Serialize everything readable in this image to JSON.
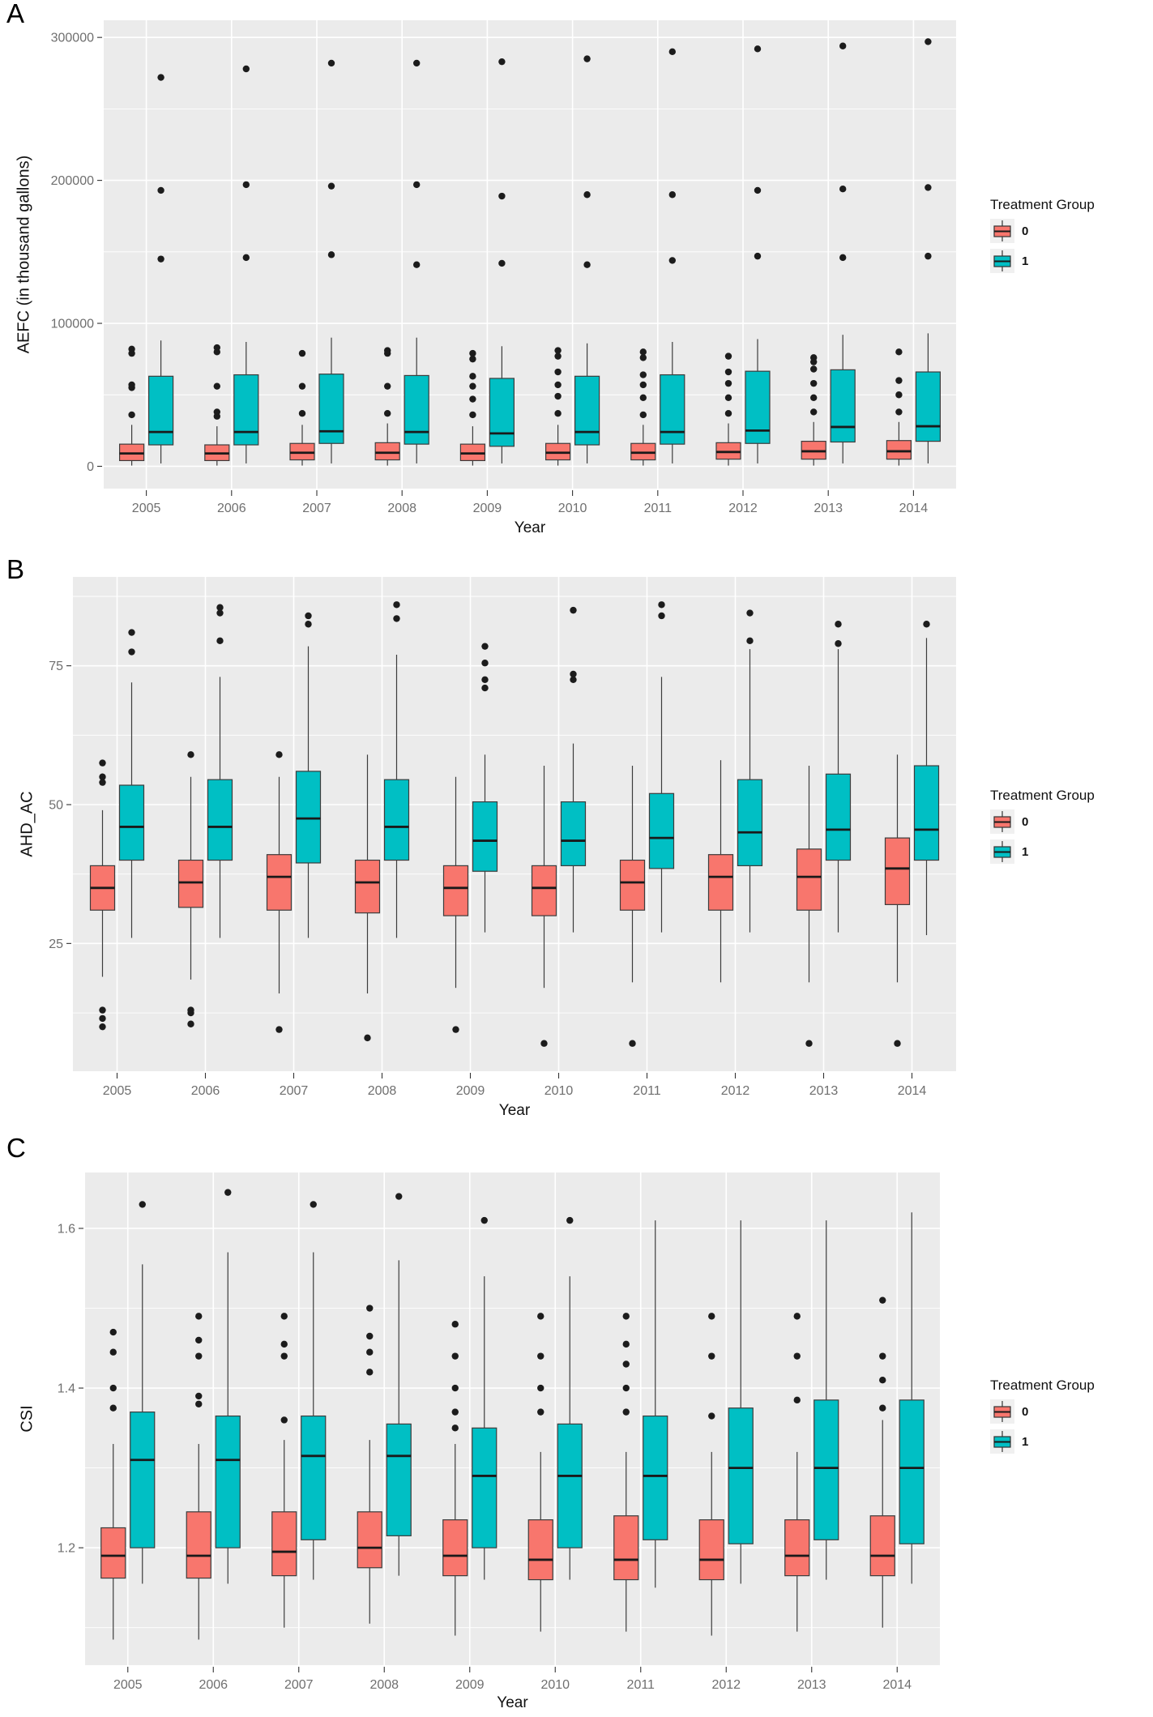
{
  "legend": {
    "title": "Treatment Group",
    "items": [
      {
        "label": "0",
        "color": "#F8766D"
      },
      {
        "label": "1",
        "color": "#00BFC4"
      }
    ]
  },
  "colors": {
    "group0": "#F8766D",
    "group1": "#00BFC4",
    "panel_background": "#EBEBEB",
    "grid": "#FFFFFF",
    "tick_text": "#6F6F6F",
    "axis_text": "#111111",
    "box_border": "#3C3C3C",
    "outlier": "#1C1C1C",
    "legend_key_bg": "#F0F0F0"
  },
  "chart_data": [
    {
      "type": "boxplot",
      "panel_label": "A",
      "xlabel": "Year",
      "ylabel": "AEFC (in thousand gallons)",
      "categories": [
        "2005",
        "2006",
        "2007",
        "2008",
        "2009",
        "2010",
        "2011",
        "2012",
        "2013",
        "2014"
      ],
      "ylim": [
        -15600,
        312000
      ],
      "yticks": [
        0,
        100000,
        200000,
        300000
      ],
      "ytick_labels": [
        "0",
        "100000",
        "200000",
        "300000"
      ],
      "minor_yticks": [
        50000,
        150000,
        250000
      ],
      "grid": true,
      "legend_position": "right",
      "series": [
        {
          "name": "0",
          "color": "#F8766D",
          "boxes": [
            {
              "low": 500,
              "q1": 4000,
              "med": 9000,
              "q3": 15500,
              "high": 29000,
              "out": [
                36000,
                55000,
                57000,
                79000,
                82000
              ]
            },
            {
              "low": 500,
              "q1": 4000,
              "med": 9000,
              "q3": 15000,
              "high": 28000,
              "out": [
                35000,
                38000,
                56000,
                80000,
                83000
              ]
            },
            {
              "low": 500,
              "q1": 4500,
              "med": 9500,
              "q3": 16000,
              "high": 29000,
              "out": [
                37000,
                56000,
                79000
              ]
            },
            {
              "low": 500,
              "q1": 4500,
              "med": 9500,
              "q3": 16500,
              "high": 30000,
              "out": [
                37000,
                56000,
                79000,
                81000
              ]
            },
            {
              "low": 500,
              "q1": 4000,
              "med": 9000,
              "q3": 15500,
              "high": 28000,
              "out": [
                36000,
                47000,
                56000,
                63000,
                75000,
                79000
              ]
            },
            {
              "low": 500,
              "q1": 4500,
              "med": 9500,
              "q3": 16000,
              "high": 29000,
              "out": [
                37000,
                49000,
                57000,
                66000,
                77000,
                81000
              ]
            },
            {
              "low": 500,
              "q1": 4500,
              "med": 9500,
              "q3": 16000,
              "high": 29000,
              "out": [
                36000,
                48000,
                57000,
                64000,
                76000,
                80000
              ]
            },
            {
              "low": 500,
              "q1": 5000,
              "med": 10000,
              "q3": 16500,
              "high": 30000,
              "out": [
                37000,
                48000,
                58000,
                66000,
                77000
              ]
            },
            {
              "low": 500,
              "q1": 5000,
              "med": 10500,
              "q3": 17500,
              "high": 31000,
              "out": [
                38000,
                48000,
                58000,
                68000,
                73000,
                76000
              ]
            },
            {
              "low": 500,
              "q1": 5000,
              "med": 10500,
              "q3": 18000,
              "high": 31000,
              "out": [
                38000,
                50000,
                60000,
                80000
              ]
            }
          ]
        },
        {
          "name": "1",
          "color": "#00BFC4",
          "boxes": [
            {
              "low": 2000,
              "q1": 15000,
              "med": 24000,
              "q3": 63000,
              "high": 88000,
              "out": [
                145000,
                193000,
                272000
              ]
            },
            {
              "low": 2000,
              "q1": 15000,
              "med": 24000,
              "q3": 64000,
              "high": 87000,
              "out": [
                146000,
                197000,
                278000
              ]
            },
            {
              "low": 2000,
              "q1": 16000,
              "med": 24500,
              "q3": 64500,
              "high": 90000,
              "out": [
                148000,
                196000,
                282000
              ]
            },
            {
              "low": 2000,
              "q1": 15500,
              "med": 24000,
              "q3": 63500,
              "high": 90000,
              "out": [
                141000,
                197000,
                282000
              ]
            },
            {
              "low": 2000,
              "q1": 14000,
              "med": 23000,
              "q3": 61500,
              "high": 84000,
              "out": [
                142000,
                189000,
                283000
              ]
            },
            {
              "low": 2000,
              "q1": 15000,
              "med": 24000,
              "q3": 63000,
              "high": 86000,
              "out": [
                141000,
                190000,
                285000
              ]
            },
            {
              "low": 2000,
              "q1": 15500,
              "med": 24000,
              "q3": 64000,
              "high": 87000,
              "out": [
                144000,
                190000,
                290000
              ]
            },
            {
              "low": 2000,
              "q1": 16000,
              "med": 25000,
              "q3": 66500,
              "high": 89000,
              "out": [
                147000,
                193000,
                292000
              ]
            },
            {
              "low": 2000,
              "q1": 17000,
              "med": 27500,
              "q3": 67500,
              "high": 92000,
              "out": [
                146000,
                194000,
                294000
              ]
            },
            {
              "low": 2000,
              "q1": 17500,
              "med": 28000,
              "q3": 66000,
              "high": 93000,
              "out": [
                147000,
                195000,
                297000
              ]
            }
          ]
        }
      ]
    },
    {
      "type": "boxplot",
      "panel_label": "B",
      "xlabel": "Year",
      "ylabel": "AHD_AC",
      "categories": [
        "2005",
        "2006",
        "2007",
        "2008",
        "2009",
        "2010",
        "2011",
        "2012",
        "2013",
        "2014"
      ],
      "ylim": [
        2,
        91
      ],
      "yticks": [
        25,
        50,
        75
      ],
      "ytick_labels": [
        "25",
        "50",
        "75"
      ],
      "minor_yticks": [
        12.5,
        37.5,
        62.5,
        87.5
      ],
      "grid": true,
      "legend_position": "right",
      "series": [
        {
          "name": "0",
          "color": "#F8766D",
          "boxes": [
            {
              "low": 19,
              "q1": 31,
              "med": 35,
              "q3": 39,
              "high": 49,
              "out": [
                10,
                11.5,
                13,
                54,
                55,
                57.5
              ]
            },
            {
              "low": 18.5,
              "q1": 31.5,
              "med": 36,
              "q3": 40,
              "high": 55,
              "out": [
                10.5,
                12.5,
                13,
                59
              ]
            },
            {
              "low": 16,
              "q1": 31,
              "med": 37,
              "q3": 41,
              "high": 55,
              "out": [
                9.5,
                59
              ]
            },
            {
              "low": 16,
              "q1": 30.5,
              "med": 36,
              "q3": 40,
              "high": 59,
              "out": [
                8
              ]
            },
            {
              "low": 17,
              "q1": 30,
              "med": 35,
              "q3": 39,
              "high": 55,
              "out": [
                9.5
              ]
            },
            {
              "low": 17,
              "q1": 30,
              "med": 35,
              "q3": 39,
              "high": 57,
              "out": [
                7
              ]
            },
            {
              "low": 18,
              "q1": 31,
              "med": 36,
              "q3": 40,
              "high": 57,
              "out": [
                7
              ]
            },
            {
              "low": 18,
              "q1": 31,
              "med": 37,
              "q3": 41,
              "high": 58,
              "out": []
            },
            {
              "low": 18,
              "q1": 31,
              "med": 37,
              "q3": 42,
              "high": 57,
              "out": [
                7
              ]
            },
            {
              "low": 18,
              "q1": 32,
              "med": 38.5,
              "q3": 44,
              "high": 59,
              "out": [
                7
              ]
            }
          ]
        },
        {
          "name": "1",
          "color": "#00BFC4",
          "boxes": [
            {
              "low": 26,
              "q1": 40,
              "med": 46,
              "q3": 53.5,
              "high": 72,
              "out": [
                77.5,
                81
              ]
            },
            {
              "low": 26,
              "q1": 40,
              "med": 46,
              "q3": 54.5,
              "high": 73,
              "out": [
                79.5,
                84.5,
                85.5
              ]
            },
            {
              "low": 26,
              "q1": 39.5,
              "med": 47.5,
              "q3": 56,
              "high": 78.5,
              "out": [
                82.5,
                84
              ]
            },
            {
              "low": 26,
              "q1": 40,
              "med": 46,
              "q3": 54.5,
              "high": 77,
              "out": [
                83.5,
                86
              ]
            },
            {
              "low": 27,
              "q1": 38,
              "med": 43.5,
              "q3": 50.5,
              "high": 59,
              "out": [
                71,
                72.5,
                75.5,
                78.5
              ]
            },
            {
              "low": 27,
              "q1": 39,
              "med": 43.5,
              "q3": 50.5,
              "high": 61,
              "out": [
                72.5,
                73.5,
                85
              ]
            },
            {
              "low": 27,
              "q1": 38.5,
              "med": 44,
              "q3": 52,
              "high": 73,
              "out": [
                84,
                86
              ]
            },
            {
              "low": 27,
              "q1": 39,
              "med": 45,
              "q3": 54.5,
              "high": 78,
              "out": [
                79.5,
                84.5
              ]
            },
            {
              "low": 27,
              "q1": 40,
              "med": 45.5,
              "q3": 55.5,
              "high": 78,
              "out": [
                79,
                82.5
              ]
            },
            {
              "low": 26.5,
              "q1": 40,
              "med": 45.5,
              "q3": 57,
              "high": 80,
              "out": [
                82.5
              ]
            }
          ]
        }
      ]
    },
    {
      "type": "boxplot",
      "panel_label": "C",
      "xlabel": "Year",
      "ylabel": "CSI",
      "categories": [
        "2005",
        "2006",
        "2007",
        "2008",
        "2009",
        "2010",
        "2011",
        "2012",
        "2013",
        "2014"
      ],
      "ylim": [
        1.053,
        1.67
      ],
      "yticks": [
        1.2,
        1.4,
        1.6
      ],
      "ytick_labels": [
        "1.2",
        "1.4",
        "1.6"
      ],
      "minor_yticks": [
        1.1,
        1.3,
        1.5
      ],
      "grid": true,
      "legend_position": "right",
      "series": [
        {
          "name": "0",
          "color": "#F8766D",
          "boxes": [
            {
              "low": 1.085,
              "q1": 1.162,
              "med": 1.19,
              "q3": 1.225,
              "high": 1.33,
              "out": [
                1.375,
                1.4,
                1.445,
                1.47
              ]
            },
            {
              "low": 1.085,
              "q1": 1.162,
              "med": 1.19,
              "q3": 1.245,
              "high": 1.33,
              "out": [
                1.38,
                1.39,
                1.44,
                1.46,
                1.49
              ]
            },
            {
              "low": 1.1,
              "q1": 1.165,
              "med": 1.195,
              "q3": 1.245,
              "high": 1.335,
              "out": [
                1.36,
                1.44,
                1.455,
                1.49
              ]
            },
            {
              "low": 1.105,
              "q1": 1.175,
              "med": 1.2,
              "q3": 1.245,
              "high": 1.335,
              "out": [
                1.42,
                1.445,
                1.465,
                1.5
              ]
            },
            {
              "low": 1.09,
              "q1": 1.165,
              "med": 1.19,
              "q3": 1.235,
              "high": 1.33,
              "out": [
                1.35,
                1.37,
                1.4,
                1.44,
                1.48
              ]
            },
            {
              "low": 1.095,
              "q1": 1.16,
              "med": 1.185,
              "q3": 1.235,
              "high": 1.32,
              "out": [
                1.37,
                1.4,
                1.44,
                1.49
              ]
            },
            {
              "low": 1.095,
              "q1": 1.16,
              "med": 1.185,
              "q3": 1.24,
              "high": 1.32,
              "out": [
                1.37,
                1.4,
                1.43,
                1.455,
                1.49
              ]
            },
            {
              "low": 1.09,
              "q1": 1.16,
              "med": 1.185,
              "q3": 1.235,
              "high": 1.32,
              "out": [
                1.365,
                1.44,
                1.49
              ]
            },
            {
              "low": 1.095,
              "q1": 1.165,
              "med": 1.19,
              "q3": 1.235,
              "high": 1.32,
              "out": [
                1.385,
                1.44,
                1.49
              ]
            },
            {
              "low": 1.1,
              "q1": 1.165,
              "med": 1.19,
              "q3": 1.24,
              "high": 1.36,
              "out": [
                1.375,
                1.41,
                1.44,
                1.51
              ]
            }
          ]
        },
        {
          "name": "1",
          "color": "#00BFC4",
          "boxes": [
            {
              "low": 1.155,
              "q1": 1.2,
              "med": 1.31,
              "q3": 1.37,
              "high": 1.555,
              "out": [
                1.63
              ]
            },
            {
              "low": 1.155,
              "q1": 1.2,
              "med": 1.31,
              "q3": 1.365,
              "high": 1.57,
              "out": [
                1.645
              ]
            },
            {
              "low": 1.16,
              "q1": 1.21,
              "med": 1.315,
              "q3": 1.365,
              "high": 1.57,
              "out": [
                1.63
              ]
            },
            {
              "low": 1.165,
              "q1": 1.215,
              "med": 1.315,
              "q3": 1.355,
              "high": 1.56,
              "out": [
                1.64
              ]
            },
            {
              "low": 1.16,
              "q1": 1.2,
              "med": 1.29,
              "q3": 1.35,
              "high": 1.54,
              "out": [
                1.61
              ]
            },
            {
              "low": 1.16,
              "q1": 1.2,
              "med": 1.29,
              "q3": 1.355,
              "high": 1.54,
              "out": [
                1.61
              ]
            },
            {
              "low": 1.15,
              "q1": 1.21,
              "med": 1.29,
              "q3": 1.365,
              "high": 1.61,
              "out": []
            },
            {
              "low": 1.155,
              "q1": 1.205,
              "med": 1.3,
              "q3": 1.375,
              "high": 1.61,
              "out": []
            },
            {
              "low": 1.16,
              "q1": 1.21,
              "med": 1.3,
              "q3": 1.385,
              "high": 1.61,
              "out": []
            },
            {
              "low": 1.155,
              "q1": 1.205,
              "med": 1.3,
              "q3": 1.385,
              "high": 1.62,
              "out": []
            }
          ]
        }
      ]
    }
  ]
}
